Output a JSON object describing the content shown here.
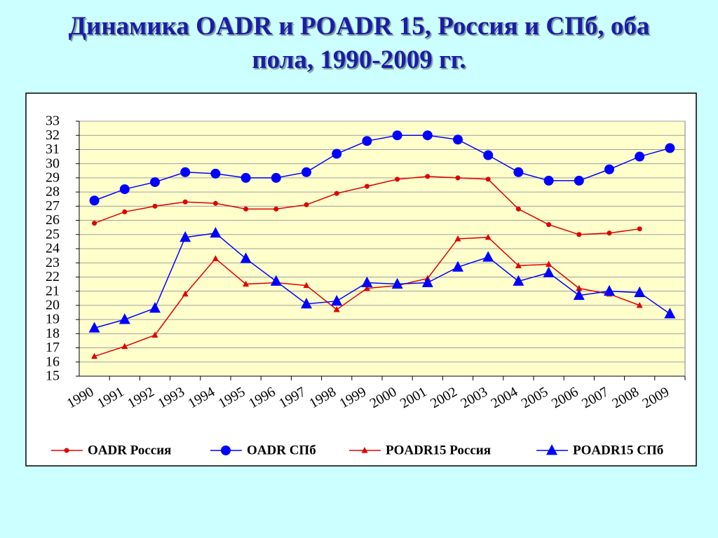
{
  "chart_data": {
    "type": "line",
    "title": "Динамика OADR и POADR 15, Россия и СПб, оба пола, 1990-2009 гг.",
    "categories": [
      "1990",
      "1991",
      "1992",
      "1993",
      "1994",
      "1995",
      "1996",
      "1997",
      "1998",
      "1999",
      "2000",
      "2001",
      "2002",
      "2003",
      "2004",
      "2005",
      "2006",
      "2007",
      "2008",
      "2009"
    ],
    "series": [
      {
        "name": "OADR Россия",
        "color": "#e00000",
        "marker": "circle",
        "values": [
          25.8,
          26.6,
          27.0,
          27.3,
          27.2,
          26.8,
          26.8,
          27.1,
          27.9,
          28.4,
          28.9,
          29.1,
          29.0,
          28.9,
          26.8,
          25.7,
          25.0,
          25.1,
          25.4,
          null
        ]
      },
      {
        "name": "OADR СПб",
        "color": "#0000ff",
        "marker": "circle",
        "values": [
          27.4,
          28.2,
          28.7,
          29.4,
          29.3,
          29.0,
          29.0,
          29.4,
          30.7,
          31.6,
          32.0,
          32.0,
          31.7,
          30.6,
          29.4,
          28.8,
          28.8,
          29.6,
          30.5,
          31.1
        ]
      },
      {
        "name": "POADR15 Россия",
        "color": "#e00000",
        "marker": "triangle",
        "values": [
          16.4,
          17.1,
          17.9,
          20.8,
          23.3,
          21.5,
          21.6,
          21.4,
          19.7,
          21.2,
          21.4,
          21.9,
          24.7,
          24.8,
          22.8,
          22.9,
          21.2,
          20.8,
          20.0,
          null
        ]
      },
      {
        "name": "POADR15 СПб",
        "color": "#0000ff",
        "marker": "triangle",
        "values": [
          18.4,
          19.0,
          19.8,
          24.8,
          25.1,
          23.3,
          21.7,
          20.1,
          20.3,
          21.6,
          21.5,
          21.6,
          22.7,
          23.4,
          21.7,
          22.3,
          20.7,
          21.0,
          20.9,
          19.4
        ]
      }
    ],
    "ylim": [
      15,
      33
    ],
    "yticks": [
      15,
      16,
      17,
      18,
      19,
      20,
      21,
      22,
      23,
      24,
      25,
      26,
      27,
      28,
      29,
      30,
      31,
      32,
      33
    ],
    "grid": true,
    "legend": "bottom"
  }
}
